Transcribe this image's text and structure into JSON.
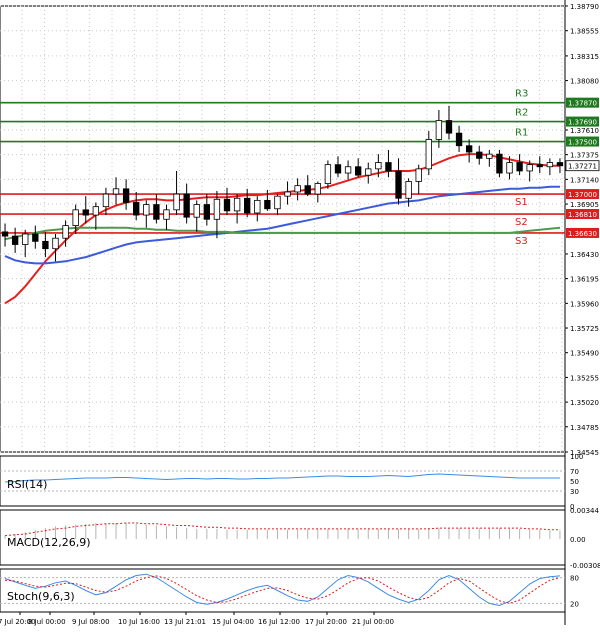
{
  "chart_data": [
    {
      "type": "candlestick",
      "name": "Price",
      "ylim": [
        1.34545,
        1.3879
      ],
      "yticks": [
        1.3879,
        1.38555,
        1.38315,
        1.3808,
        1.3761,
        1.37375,
        1.3714,
        1.36905,
        1.3643,
        1.36195,
        1.3596,
        1.35725,
        1.3549,
        1.35255,
        1.3502,
        1.34785,
        1.34545
      ],
      "ytick_labels": [
        "1.38790",
        "1.38555",
        "1.38315",
        "1.38080",
        "1.37610",
        "1.37375",
        "1.37140",
        "1.36905",
        "1.36430",
        "1.36195",
        "1.35960",
        "1.35725",
        "1.35490",
        "1.35255",
        "1.35020",
        "1.34785",
        "1.34545"
      ],
      "xtick_labels": [
        "7 Jul 20:00",
        "8 Jul 00:00",
        "9 Jul 08:00",
        "10 Jul 16:00",
        "13 Jul 21:01",
        "15 Jul 04:00",
        "16 Jul 12:00",
        "17 Jul 20:00",
        "21 Jul 00:00"
      ],
      "candles_ohlc": [
        [
          1.3664,
          1.3672,
          1.365,
          1.366
        ],
        [
          1.366,
          1.3668,
          1.3644,
          1.3652
        ],
        [
          1.3652,
          1.3666,
          1.364,
          1.3662
        ],
        [
          1.3662,
          1.367,
          1.3648,
          1.3655
        ],
        [
          1.3655,
          1.3664,
          1.364,
          1.3648
        ],
        [
          1.3648,
          1.3662,
          1.3636,
          1.3658
        ],
        [
          1.3658,
          1.3675,
          1.365,
          1.367
        ],
        [
          1.367,
          1.369,
          1.3662,
          1.3685
        ],
        [
          1.3685,
          1.3698,
          1.3672,
          1.368
        ],
        [
          1.368,
          1.3692,
          1.3666,
          1.3688
        ],
        [
          1.3688,
          1.3706,
          1.368,
          1.37
        ],
        [
          1.37,
          1.3716,
          1.369,
          1.3705
        ],
        [
          1.3705,
          1.3714,
          1.3685,
          1.3692
        ],
        [
          1.3692,
          1.3702,
          1.3675,
          1.368
        ],
        [
          1.368,
          1.3694,
          1.3668,
          1.369
        ],
        [
          1.369,
          1.37,
          1.3672,
          1.3676
        ],
        [
          1.3676,
          1.369,
          1.3666,
          1.3685
        ],
        [
          1.3685,
          1.3722,
          1.368,
          1.37
        ],
        [
          1.37,
          1.371,
          1.3672,
          1.3678
        ],
        [
          1.3678,
          1.3694,
          1.3664,
          1.369
        ],
        [
          1.369,
          1.37,
          1.367,
          1.3676
        ],
        [
          1.3676,
          1.3703,
          1.3658,
          1.3695
        ],
        [
          1.3695,
          1.3706,
          1.368,
          1.3684
        ],
        [
          1.3684,
          1.37,
          1.3672,
          1.3696
        ],
        [
          1.3696,
          1.3705,
          1.3678,
          1.3682
        ],
        [
          1.3682,
          1.3698,
          1.3674,
          1.3694
        ],
        [
          1.3694,
          1.3704,
          1.3684,
          1.3686
        ],
        [
          1.3686,
          1.37,
          1.368,
          1.3698
        ],
        [
          1.3698,
          1.3712,
          1.369,
          1.3702
        ],
        [
          1.3702,
          1.3715,
          1.3694,
          1.3708
        ],
        [
          1.3708,
          1.3718,
          1.3698,
          1.37
        ],
        [
          1.37,
          1.3712,
          1.3692,
          1.371
        ],
        [
          1.371,
          1.3732,
          1.3705,
          1.3728
        ],
        [
          1.3728,
          1.3736,
          1.3716,
          1.372
        ],
        [
          1.372,
          1.3732,
          1.3714,
          1.3726
        ],
        [
          1.3726,
          1.3734,
          1.3716,
          1.3718
        ],
        [
          1.3718,
          1.373,
          1.371,
          1.3724
        ],
        [
          1.3724,
          1.3738,
          1.3716,
          1.373
        ],
        [
          1.373,
          1.3742,
          1.3716,
          1.3722
        ],
        [
          1.3722,
          1.3734,
          1.369,
          1.3696
        ],
        [
          1.3696,
          1.3715,
          1.3688,
          1.3712
        ],
        [
          1.3712,
          1.3728,
          1.37,
          1.3724
        ],
        [
          1.3724,
          1.376,
          1.3718,
          1.3752
        ],
        [
          1.3752,
          1.378,
          1.3744,
          1.377
        ],
        [
          1.377,
          1.3784,
          1.3752,
          1.3758
        ],
        [
          1.3758,
          1.3765,
          1.374,
          1.3746
        ],
        [
          1.3746,
          1.3752,
          1.373,
          1.374
        ],
        [
          1.374,
          1.3746,
          1.3728,
          1.3734
        ],
        [
          1.3734,
          1.3742,
          1.3726,
          1.3738
        ],
        [
          1.3738,
          1.3742,
          1.3716,
          1.372
        ],
        [
          1.372,
          1.3736,
          1.3714,
          1.373
        ],
        [
          1.373,
          1.3738,
          1.3718,
          1.3722
        ],
        [
          1.3722,
          1.3732,
          1.3712,
          1.3728
        ],
        [
          1.3728,
          1.3736,
          1.372,
          1.3726
        ],
        [
          1.3726,
          1.3734,
          1.3718,
          1.373
        ],
        [
          1.373,
          1.3734,
          1.372,
          1.3727
        ]
      ],
      "current_price_label": "1.37271",
      "levels": [
        {
          "label": "R3",
          "value": 1.3787,
          "tag": "1.37870",
          "color": "#1f7a1f"
        },
        {
          "label": "R2",
          "value": 1.3769,
          "tag": "1.37690",
          "color": "#1f7a1f"
        },
        {
          "label": "R1",
          "value": 1.375,
          "tag": "1.37500",
          "color": "#1f7a1f"
        },
        {
          "label": "S1",
          "value": 1.37,
          "tag": "1.37000",
          "color": "#e01b1b"
        },
        {
          "label": "S2",
          "value": 1.3681,
          "tag": "1.36810",
          "color": "#e01b1b"
        },
        {
          "label": "S3",
          "value": 1.3663,
          "tag": "1.36630",
          "color": "#e01b1b"
        }
      ],
      "moving_averages": [
        {
          "color": "#e61e1e",
          "values": [
            1.3596,
            1.3602,
            1.3612,
            1.3624,
            1.3636,
            1.3646,
            1.3656,
            1.3665,
            1.3673,
            1.368,
            1.3685,
            1.3689,
            1.3692,
            1.3694,
            1.3695,
            1.3695,
            1.3694,
            1.3694,
            1.3695,
            1.3696,
            1.3697,
            1.3697,
            1.3697,
            1.3698,
            1.3699,
            1.3699,
            1.37,
            1.3701,
            1.3702,
            1.3703,
            1.3704,
            1.3705,
            1.3707,
            1.371,
            1.3713,
            1.3716,
            1.3718,
            1.372,
            1.3722,
            1.3722,
            1.3722,
            1.3723,
            1.3726,
            1.373,
            1.3734,
            1.3737,
            1.3738,
            1.3738,
            1.3737,
            1.3735,
            1.3733,
            1.3731,
            1.3729,
            1.3728,
            1.3727,
            1.3727
          ]
        },
        {
          "color": "#3c5adc",
          "values": [
            1.3641,
            1.3637,
            1.3635,
            1.3634,
            1.3634,
            1.3635,
            1.3636,
            1.3638,
            1.364,
            1.3643,
            1.3646,
            1.3649,
            1.3652,
            1.3654,
            1.3655,
            1.3656,
            1.3657,
            1.3658,
            1.3659,
            1.366,
            1.3661,
            1.3662,
            1.3663,
            1.3664,
            1.3665,
            1.3666,
            1.3667,
            1.3669,
            1.3671,
            1.3673,
            1.3675,
            1.3677,
            1.3679,
            1.3681,
            1.3683,
            1.3685,
            1.3687,
            1.3689,
            1.3691,
            1.3692,
            1.3693,
            1.3694,
            1.3696,
            1.3698,
            1.3699,
            1.37,
            1.3701,
            1.3702,
            1.3703,
            1.3704,
            1.3705,
            1.3705,
            1.3706,
            1.3706,
            1.3707,
            1.3707
          ]
        },
        {
          "color": "#4f9a4f",
          "values": [
            1.3657,
            1.3659,
            1.3661,
            1.3663,
            1.3665,
            1.3666,
            1.3667,
            1.3668,
            1.3668,
            1.3668,
            1.3668,
            1.3668,
            1.3668,
            1.3667,
            1.3667,
            1.3666,
            1.3666,
            1.3665,
            1.3665,
            1.3665,
            1.3664,
            1.3664,
            1.3664,
            1.3663,
            1.3663,
            1.3663,
            1.3663,
            1.3663,
            1.3663,
            1.3663,
            1.3663,
            1.3663,
            1.3663,
            1.3663,
            1.3663,
            1.3663,
            1.3663,
            1.3663,
            1.3663,
            1.3663,
            1.3663,
            1.3663,
            1.3663,
            1.3663,
            1.3663,
            1.3663,
            1.3663,
            1.3663,
            1.3663,
            1.3663,
            1.3663,
            1.3664,
            1.3665,
            1.3666,
            1.3667,
            1.3668
          ]
        }
      ]
    },
    {
      "type": "line",
      "name": "RSI(14)",
      "label": "RSI(14)",
      "ylim": [
        0,
        100
      ],
      "yticks": [
        100,
        70,
        50,
        30,
        0
      ],
      "ytick_labels": [
        "100",
        "70",
        "50",
        "30",
        "0"
      ],
      "series": [
        {
          "color": "#3c8ce6",
          "values": [
            48,
            49,
            51,
            52,
            52,
            53,
            54,
            55,
            56,
            56,
            56,
            57,
            57,
            56,
            55,
            54,
            53,
            54,
            55,
            55,
            54,
            55,
            55,
            54,
            54,
            55,
            55,
            56,
            56,
            57,
            58,
            59,
            60,
            60,
            59,
            59,
            59,
            60,
            61,
            60,
            59,
            61,
            63,
            64,
            63,
            62,
            61,
            60,
            59,
            58,
            57,
            56,
            56,
            56,
            56,
            56
          ]
        }
      ]
    },
    {
      "type": "bar+line",
      "name": "MACD(12,26,9)",
      "label": "MACD(12,26,9)",
      "ylim": [
        -0.00308,
        0.00344
      ],
      "yticks": [
        0.00344,
        0.0,
        -0.00308
      ],
      "ytick_labels": [
        "0.00344",
        "0.00",
        "-0.00308"
      ],
      "histogram": [
        0.0004,
        0.0006,
        0.0008,
        0.0011,
        0.0013,
        0.0015,
        0.0016,
        0.0017,
        0.0018,
        0.0019,
        0.0019,
        0.0019,
        0.0019,
        0.0018,
        0.0017,
        0.0016,
        0.0015,
        0.0014,
        0.0013,
        0.0012,
        0.0012,
        0.0012,
        0.0011,
        0.0011,
        0.0011,
        0.0011,
        0.0011,
        0.0011,
        0.0011,
        0.0011,
        0.0012,
        0.0012,
        0.0012,
        0.0012,
        0.0012,
        0.0012,
        0.0012,
        0.0012,
        0.0012,
        0.0012,
        0.0012,
        0.0012,
        0.0013,
        0.0013,
        0.0013,
        0.0013,
        0.0013,
        0.0013,
        0.0013,
        0.0013,
        0.0012,
        0.0012,
        0.0011,
        0.0011,
        0.001,
        0.001
      ],
      "signal": [
        0.0004,
        0.0005,
        0.0006,
        0.0008,
        0.001,
        0.0012,
        0.0013,
        0.0015,
        0.0016,
        0.0017,
        0.0018,
        0.0018,
        0.0019,
        0.0019,
        0.0018,
        0.0018,
        0.0017,
        0.0016,
        0.0016,
        0.0015,
        0.0014,
        0.0014,
        0.0013,
        0.0013,
        0.0012,
        0.0012,
        0.0012,
        0.0012,
        0.0012,
        0.0012,
        0.0012,
        0.0012,
        0.0012,
        0.0012,
        0.0012,
        0.0012,
        0.0012,
        0.0012,
        0.0012,
        0.0012,
        0.0012,
        0.0012,
        0.0012,
        0.0013,
        0.0013,
        0.0013,
        0.0013,
        0.0013,
        0.0013,
        0.0013,
        0.0013,
        0.0013,
        0.0012,
        0.0012,
        0.0011,
        0.0011
      ]
    },
    {
      "type": "line",
      "name": "Stoch(9,6,3)",
      "label": "Stoch(9,6,3)",
      "ylim": [
        0,
        100
      ],
      "yticks": [
        80,
        20
      ],
      "ytick_labels": [
        "80",
        "20"
      ],
      "series": [
        {
          "color": "#3c8ce6",
          "values": [
            78,
            70,
            62,
            55,
            60,
            68,
            72,
            62,
            50,
            40,
            45,
            60,
            75,
            85,
            88,
            80,
            65,
            50,
            35,
            22,
            18,
            22,
            30,
            40,
            50,
            58,
            62,
            50,
            38,
            28,
            25,
            35,
            55,
            75,
            85,
            80,
            70,
            55,
            40,
            30,
            22,
            30,
            50,
            75,
            85,
            75,
            55,
            35,
            20,
            15,
            25,
            45,
            65,
            78,
            82,
            84
          ]
        },
        {
          "color": "#e01b1b",
          "values": [
            74,
            72,
            66,
            60,
            58,
            62,
            67,
            66,
            58,
            50,
            46,
            50,
            60,
            72,
            80,
            84,
            78,
            66,
            52,
            38,
            28,
            22,
            24,
            31,
            40,
            48,
            55,
            56,
            50,
            40,
            32,
            30,
            38,
            52,
            68,
            78,
            80,
            72,
            58,
            45,
            34,
            28,
            34,
            50,
            68,
            78,
            72,
            56,
            40,
            26,
            20,
            28,
            44,
            60,
            74,
            80
          ]
        }
      ]
    }
  ]
}
